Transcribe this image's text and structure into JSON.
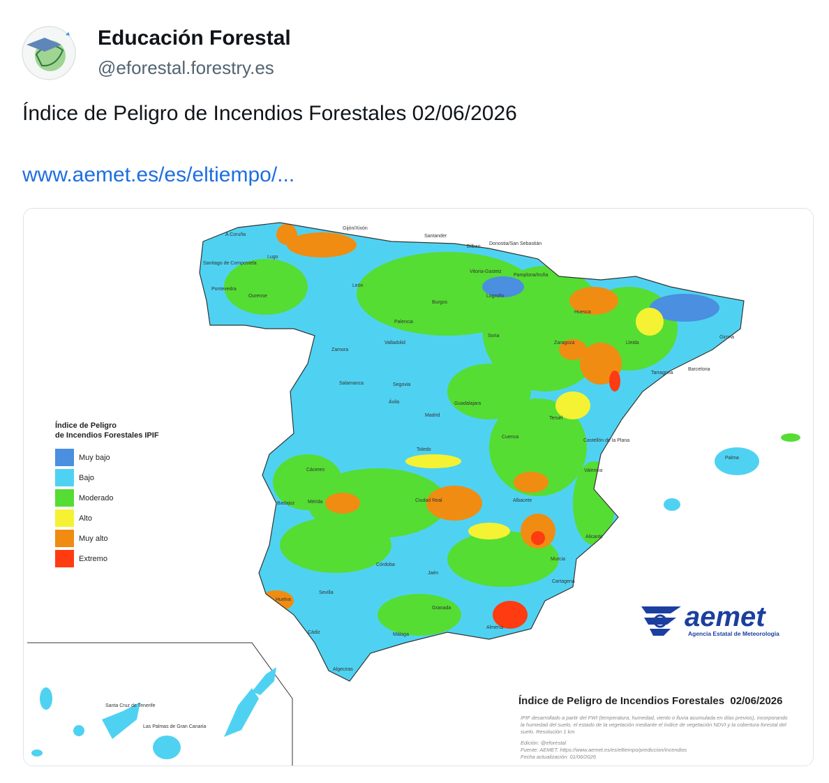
{
  "post": {
    "author_name": "Educación Forestal",
    "handle": "@eforestal.forestry.es",
    "text": "Índice de Peligro de Incendios Forestales 02/06/2026",
    "link": "www.aemet.es/es/eltiempo/..."
  },
  "image": {
    "legend": {
      "title": [
        "Índice de Peligro",
        "de Incendios Forestales IPIF"
      ],
      "items": [
        {
          "label": "Muy bajo",
          "color": "#4a8fe0"
        },
        {
          "label": "Bajo",
          "color": "#4fd2f2"
        },
        {
          "label": "Moderado",
          "color": "#55dd33"
        },
        {
          "label": "Alto",
          "color": "#f5f233"
        },
        {
          "label": "Muy alto",
          "color": "#f08c12"
        },
        {
          "label": "Extremo",
          "color": "#ff3b12"
        }
      ]
    },
    "logo": {
      "name": "aemet",
      "subtitle": "Agencia Estatal de Meteorología"
    },
    "caption": {
      "title": "Índice de Peligro de Incendios Forestales  02/06/2026",
      "description": [
        "IPIF desarrollado a partir del FWI (temperatura, humedad, viento o lluvia acumulada en días previos), incorporando",
        "la humedad del suelo, el estado de la vegetación mediante el índice de vegetación NDVI y la cobertura forestal del",
        "suelo. Resolución 1 km"
      ],
      "edition": "Edición: @eforestal",
      "source": "Fuente: AEMET. https://www.aemet.es/es/eltiempo/prediccion/incendios",
      "updated": "Fecha actualización: 01/06/2026"
    },
    "places": [
      "A Coruña",
      "Gijón/Xixón",
      "Santander",
      "Bilbao",
      "Donostia/San Sebastián",
      "Santiago de Compostela",
      "Lugo",
      "Pontevedra",
      "Ourense",
      "León",
      "Burgos",
      "Palencia",
      "Valladolid",
      "Zamora",
      "Salamanca",
      "Segovia",
      "Ávila",
      "Madrid",
      "Guadalajara",
      "Soria",
      "Logroño",
      "Vitoria-Gasteiz",
      "Pamplona/Iruña",
      "Huesca",
      "Zaragoza",
      "Lleida",
      "Girona",
      "Barcelona",
      "Tarragona",
      "Teruel",
      "Cuenca",
      "Toledo",
      "Castellón de la Plana",
      "Cáceres",
      "Badajoz",
      "Mérida",
      "Ciudad Real",
      "Albacete",
      "Valencia",
      "Alicante",
      "Murcia",
      "Cartagena",
      "Córdoba",
      "Jaén",
      "Sevilla",
      "Huelva",
      "Granada",
      "Almería",
      "Málaga",
      "Cádiz",
      "Algeciras",
      "Palma",
      "Santa Cruz de Tenerife",
      "Las Palmas de Gran Canaria"
    ]
  }
}
